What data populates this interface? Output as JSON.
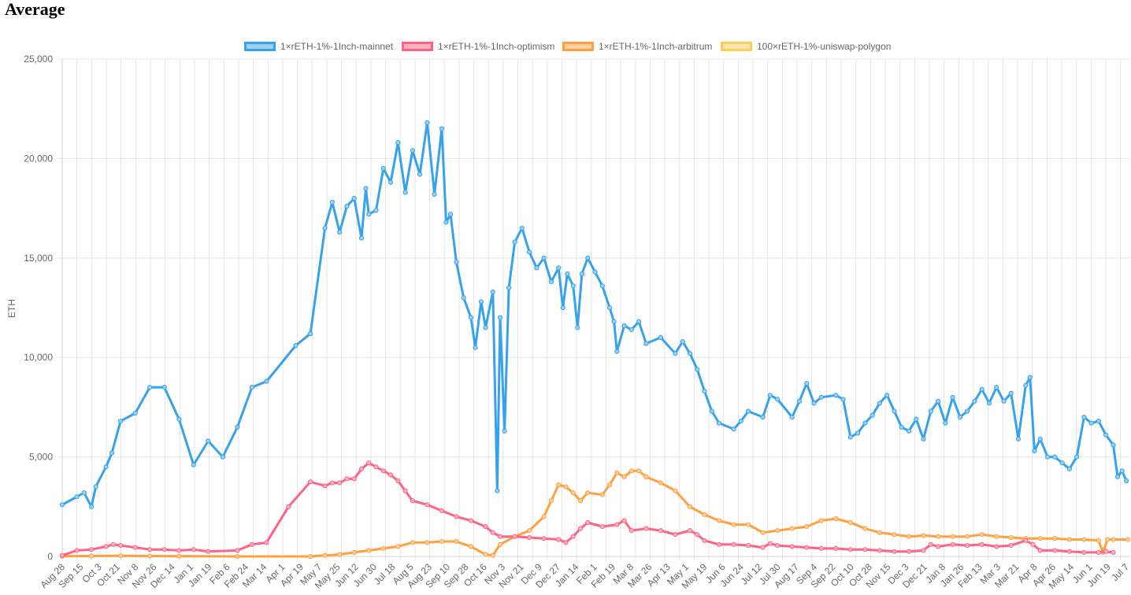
{
  "title": "Average",
  "chart_data": {
    "type": "line",
    "title": "Average",
    "xlabel": "",
    "ylabel": "ETH",
    "ylim": [
      0,
      25000
    ],
    "yticks": [
      0,
      5000,
      10000,
      15000,
      20000,
      25000
    ],
    "ytick_labels": [
      "0",
      "5,000",
      "10,000",
      "15,000",
      "20,000",
      "25,000"
    ],
    "xtick_labels": [
      "Aug 28",
      "Sep 15",
      "Oct 3",
      "Oct 21",
      "Nov 8",
      "Nov 26",
      "Dec 14",
      "Jan 1",
      "Jan 19",
      "Feb 6",
      "Feb 24",
      "Mar 14",
      "Apr 1",
      "Apr 19",
      "May 7",
      "May 25",
      "Jun 12",
      "Jun 30",
      "Jul 18",
      "Aug 5",
      "Aug 23",
      "Sep 10",
      "Sep 28",
      "Oct 16",
      "Nov 3",
      "Nov 21",
      "Dec 9",
      "Dec 27",
      "Jan 14",
      "Feb 1",
      "Feb 19",
      "Mar 8",
      "Mar 26",
      "Apr 13",
      "May 1",
      "May 19",
      "Jun 6",
      "Jun 24",
      "Jul 12",
      "Jul 30",
      "Aug 17",
      "Sep 4",
      "Sep 22",
      "Oct 10",
      "Oct 28",
      "Nov 15",
      "Dec 3",
      "Dec 21",
      "Jan 8",
      "Jan 26",
      "Feb 13",
      "Mar 3",
      "Mar 21",
      "Apr 8",
      "Apr 26",
      "May 14",
      "Jun 1",
      "Jun 19",
      "Jul 7"
    ],
    "grid": true,
    "legend_position": "top",
    "series": [
      {
        "name": "1×rETH-1%-1Inch-mainnet",
        "color": "#36a2eb",
        "fill": "#9ad0f5",
        "points": [
          [
            0,
            2600
          ],
          [
            1,
            3000
          ],
          [
            1.5,
            3200
          ],
          [
            2,
            2500
          ],
          [
            2.3,
            3500
          ],
          [
            3,
            4500
          ],
          [
            3.4,
            5200
          ],
          [
            4,
            6800
          ],
          [
            5,
            7200
          ],
          [
            6,
            8500
          ],
          [
            7,
            8500
          ],
          [
            8,
            6900
          ],
          [
            9,
            4600
          ],
          [
            10,
            5800
          ],
          [
            11,
            5000
          ],
          [
            12,
            6500
          ],
          [
            13,
            8500
          ],
          [
            14,
            8800
          ],
          [
            16,
            10600
          ],
          [
            17,
            11200
          ],
          [
            18,
            16500
          ],
          [
            18.5,
            17800
          ],
          [
            19,
            16300
          ],
          [
            19.5,
            17600
          ],
          [
            20,
            18000
          ],
          [
            20.5,
            16000
          ],
          [
            20.8,
            18500
          ],
          [
            21,
            17200
          ],
          [
            21.5,
            17400
          ],
          [
            22,
            19500
          ],
          [
            22.5,
            18800
          ],
          [
            23,
            20800
          ],
          [
            23.5,
            18300
          ],
          [
            24,
            20400
          ],
          [
            24.5,
            19200
          ],
          [
            25,
            21800
          ],
          [
            25.5,
            18200
          ],
          [
            26,
            21500
          ],
          [
            26.3,
            16800
          ],
          [
            26.6,
            17200
          ],
          [
            27,
            14800
          ],
          [
            27.5,
            13000
          ],
          [
            28,
            12000
          ],
          [
            28.3,
            10500
          ],
          [
            28.7,
            12800
          ],
          [
            29,
            11500
          ],
          [
            29.5,
            13300
          ],
          [
            29.8,
            3300
          ],
          [
            30,
            12000
          ],
          [
            30.3,
            6300
          ],
          [
            30.6,
            13500
          ],
          [
            31,
            15800
          ],
          [
            31.5,
            16500
          ],
          [
            32,
            15300
          ],
          [
            32.5,
            14500
          ],
          [
            33,
            15000
          ],
          [
            33.5,
            13800
          ],
          [
            34,
            14500
          ],
          [
            34.3,
            12500
          ],
          [
            34.6,
            14200
          ],
          [
            35,
            13600
          ],
          [
            35.3,
            11500
          ],
          [
            35.6,
            14200
          ],
          [
            36,
            15000
          ],
          [
            36.5,
            14300
          ],
          [
            37,
            13600
          ],
          [
            37.5,
            12500
          ],
          [
            37.8,
            11800
          ],
          [
            38,
            10300
          ],
          [
            38.5,
            11600
          ],
          [
            39,
            11400
          ],
          [
            39.5,
            11800
          ],
          [
            40,
            10700
          ],
          [
            41,
            11000
          ],
          [
            42,
            10200
          ],
          [
            42.5,
            10800
          ],
          [
            43,
            10200
          ],
          [
            43.5,
            9400
          ],
          [
            44,
            8300
          ],
          [
            44.5,
            7300
          ],
          [
            45,
            6700
          ],
          [
            46,
            6400
          ],
          [
            46.5,
            6800
          ],
          [
            47,
            7300
          ],
          [
            48,
            7000
          ],
          [
            48.5,
            8100
          ],
          [
            49,
            7900
          ],
          [
            50,
            7000
          ],
          [
            50.5,
            7800
          ],
          [
            51,
            8700
          ],
          [
            51.5,
            7700
          ],
          [
            52,
            8000
          ],
          [
            53,
            8100
          ],
          [
            53.5,
            7900
          ],
          [
            54,
            6000
          ],
          [
            54.5,
            6200
          ],
          [
            55,
            6700
          ],
          [
            55.5,
            7100
          ],
          [
            56,
            7700
          ],
          [
            56.5,
            8100
          ],
          [
            57,
            7300
          ],
          [
            57.5,
            6500
          ],
          [
            58,
            6300
          ],
          [
            58.5,
            6900
          ],
          [
            59,
            5900
          ],
          [
            59.5,
            7300
          ],
          [
            60,
            7800
          ],
          [
            60.5,
            6700
          ],
          [
            61,
            8000
          ],
          [
            61.5,
            7000
          ],
          [
            62,
            7300
          ],
          [
            62.5,
            7800
          ],
          [
            63,
            8400
          ],
          [
            63.5,
            7700
          ],
          [
            64,
            8500
          ],
          [
            64.5,
            7800
          ],
          [
            65,
            8200
          ],
          [
            65.5,
            5900
          ],
          [
            66,
            8600
          ],
          [
            66.3,
            9000
          ],
          [
            66.6,
            5300
          ],
          [
            67,
            5900
          ],
          [
            67.5,
            5000
          ],
          [
            68,
            5000
          ],
          [
            68.5,
            4700
          ],
          [
            69,
            4400
          ],
          [
            69.5,
            5000
          ],
          [
            70,
            7000
          ],
          [
            70.5,
            6700
          ],
          [
            71,
            6800
          ],
          [
            71.5,
            6100
          ],
          [
            72,
            5600
          ],
          [
            72.3,
            4000
          ],
          [
            72.6,
            4300
          ],
          [
            72.9,
            3800
          ]
        ]
      },
      {
        "name": "1×rETH-1%-1Inch-optimism",
        "color": "#ff6384",
        "fill": "#ffb1c1",
        "points": [
          [
            0,
            50
          ],
          [
            1,
            300
          ],
          [
            2,
            350
          ],
          [
            3,
            500
          ],
          [
            3.5,
            600
          ],
          [
            4,
            550
          ],
          [
            5,
            450
          ],
          [
            6,
            350
          ],
          [
            7,
            350
          ],
          [
            8,
            300
          ],
          [
            9,
            350
          ],
          [
            10,
            250
          ],
          [
            12,
            300
          ],
          [
            13,
            600
          ],
          [
            14,
            700
          ],
          [
            15.5,
            2500
          ],
          [
            17,
            3750
          ],
          [
            18,
            3550
          ],
          [
            18.5,
            3700
          ],
          [
            19,
            3700
          ],
          [
            19.5,
            3900
          ],
          [
            20,
            3900
          ],
          [
            20.5,
            4400
          ],
          [
            21,
            4700
          ],
          [
            21.5,
            4500
          ],
          [
            22,
            4300
          ],
          [
            22.5,
            4100
          ],
          [
            23,
            3800
          ],
          [
            23.5,
            3300
          ],
          [
            24,
            2800
          ],
          [
            25,
            2600
          ],
          [
            26,
            2300
          ],
          [
            27,
            2000
          ],
          [
            28,
            1800
          ],
          [
            29,
            1500
          ],
          [
            29.5,
            1200
          ],
          [
            30,
            1000
          ],
          [
            31,
            1000
          ],
          [
            32,
            950
          ],
          [
            33,
            900
          ],
          [
            34,
            850
          ],
          [
            34.5,
            700
          ],
          [
            35,
            1000
          ],
          [
            35.5,
            1400
          ],
          [
            36,
            1700
          ],
          [
            37,
            1500
          ],
          [
            38,
            1600
          ],
          [
            38.5,
            1800
          ],
          [
            39,
            1300
          ],
          [
            40,
            1400
          ],
          [
            41,
            1300
          ],
          [
            42,
            1100
          ],
          [
            43,
            1300
          ],
          [
            43.5,
            1100
          ],
          [
            44,
            800
          ],
          [
            45,
            600
          ],
          [
            46,
            600
          ],
          [
            47,
            550
          ],
          [
            48,
            450
          ],
          [
            48.5,
            650
          ],
          [
            49,
            550
          ],
          [
            50,
            500
          ],
          [
            51,
            450
          ],
          [
            52,
            400
          ],
          [
            53,
            400
          ],
          [
            54,
            350
          ],
          [
            55,
            350
          ],
          [
            56,
            300
          ],
          [
            57,
            250
          ],
          [
            58,
            250
          ],
          [
            59,
            300
          ],
          [
            59.5,
            600
          ],
          [
            60,
            500
          ],
          [
            61,
            600
          ],
          [
            62,
            550
          ],
          [
            63,
            600
          ],
          [
            64,
            500
          ],
          [
            65,
            550
          ],
          [
            66,
            800
          ],
          [
            66.5,
            600
          ],
          [
            67,
            300
          ],
          [
            68,
            300
          ],
          [
            69,
            250
          ],
          [
            70,
            200
          ],
          [
            71,
            200
          ],
          [
            71.5,
            250
          ],
          [
            72,
            200
          ]
        ]
      },
      {
        "name": "1×rETH-1%-1Inch-arbitrum",
        "color": "#ff9f40",
        "fill": "#ffcf9f",
        "points": [
          [
            0,
            10
          ],
          [
            2,
            20
          ],
          [
            4,
            30
          ],
          [
            6,
            20
          ],
          [
            8,
            10
          ],
          [
            12,
            0
          ],
          [
            17,
            0
          ],
          [
            18,
            50
          ],
          [
            19,
            100
          ],
          [
            20,
            200
          ],
          [
            21,
            300
          ],
          [
            22,
            400
          ],
          [
            23,
            500
          ],
          [
            24,
            700
          ],
          [
            25,
            700
          ],
          [
            26,
            750
          ],
          [
            27,
            750
          ],
          [
            28,
            500
          ],
          [
            29,
            100
          ],
          [
            29.5,
            50
          ],
          [
            30,
            600
          ],
          [
            31,
            1000
          ],
          [
            32,
            1300
          ],
          [
            33,
            2000
          ],
          [
            33.5,
            2800
          ],
          [
            34,
            3600
          ],
          [
            34.5,
            3500
          ],
          [
            35,
            3200
          ],
          [
            35.5,
            2800
          ],
          [
            36,
            3200
          ],
          [
            37,
            3100
          ],
          [
            37.5,
            3600
          ],
          [
            38,
            4200
          ],
          [
            38.5,
            4000
          ],
          [
            39,
            4300
          ],
          [
            39.5,
            4300
          ],
          [
            40,
            4000
          ],
          [
            41,
            3700
          ],
          [
            42,
            3300
          ],
          [
            43,
            2500
          ],
          [
            44,
            2100
          ],
          [
            45,
            1800
          ],
          [
            46,
            1600
          ],
          [
            47,
            1600
          ],
          [
            48,
            1200
          ],
          [
            49,
            1300
          ],
          [
            50,
            1400
          ],
          [
            51,
            1500
          ],
          [
            52,
            1800
          ],
          [
            53,
            1900
          ],
          [
            54,
            1700
          ],
          [
            55,
            1400
          ],
          [
            56,
            1200
          ],
          [
            57,
            1100
          ],
          [
            58,
            1000
          ],
          [
            59,
            1050
          ],
          [
            60,
            1000
          ],
          [
            61,
            1000
          ],
          [
            62,
            1000
          ],
          [
            63,
            1100
          ],
          [
            64,
            1000
          ],
          [
            65,
            950
          ],
          [
            66,
            900
          ],
          [
            67,
            900
          ],
          [
            68,
            900
          ],
          [
            69,
            850
          ],
          [
            70,
            850
          ],
          [
            71,
            800
          ],
          [
            71.3,
            200
          ],
          [
            71.6,
            850
          ],
          [
            72,
            850
          ],
          [
            73,
            850
          ]
        ]
      },
      {
        "name": "100×rETH-1%-uniswap-polygon",
        "color": "#ffcd56",
        "fill": "#ffe6aa",
        "points": []
      }
    ]
  }
}
